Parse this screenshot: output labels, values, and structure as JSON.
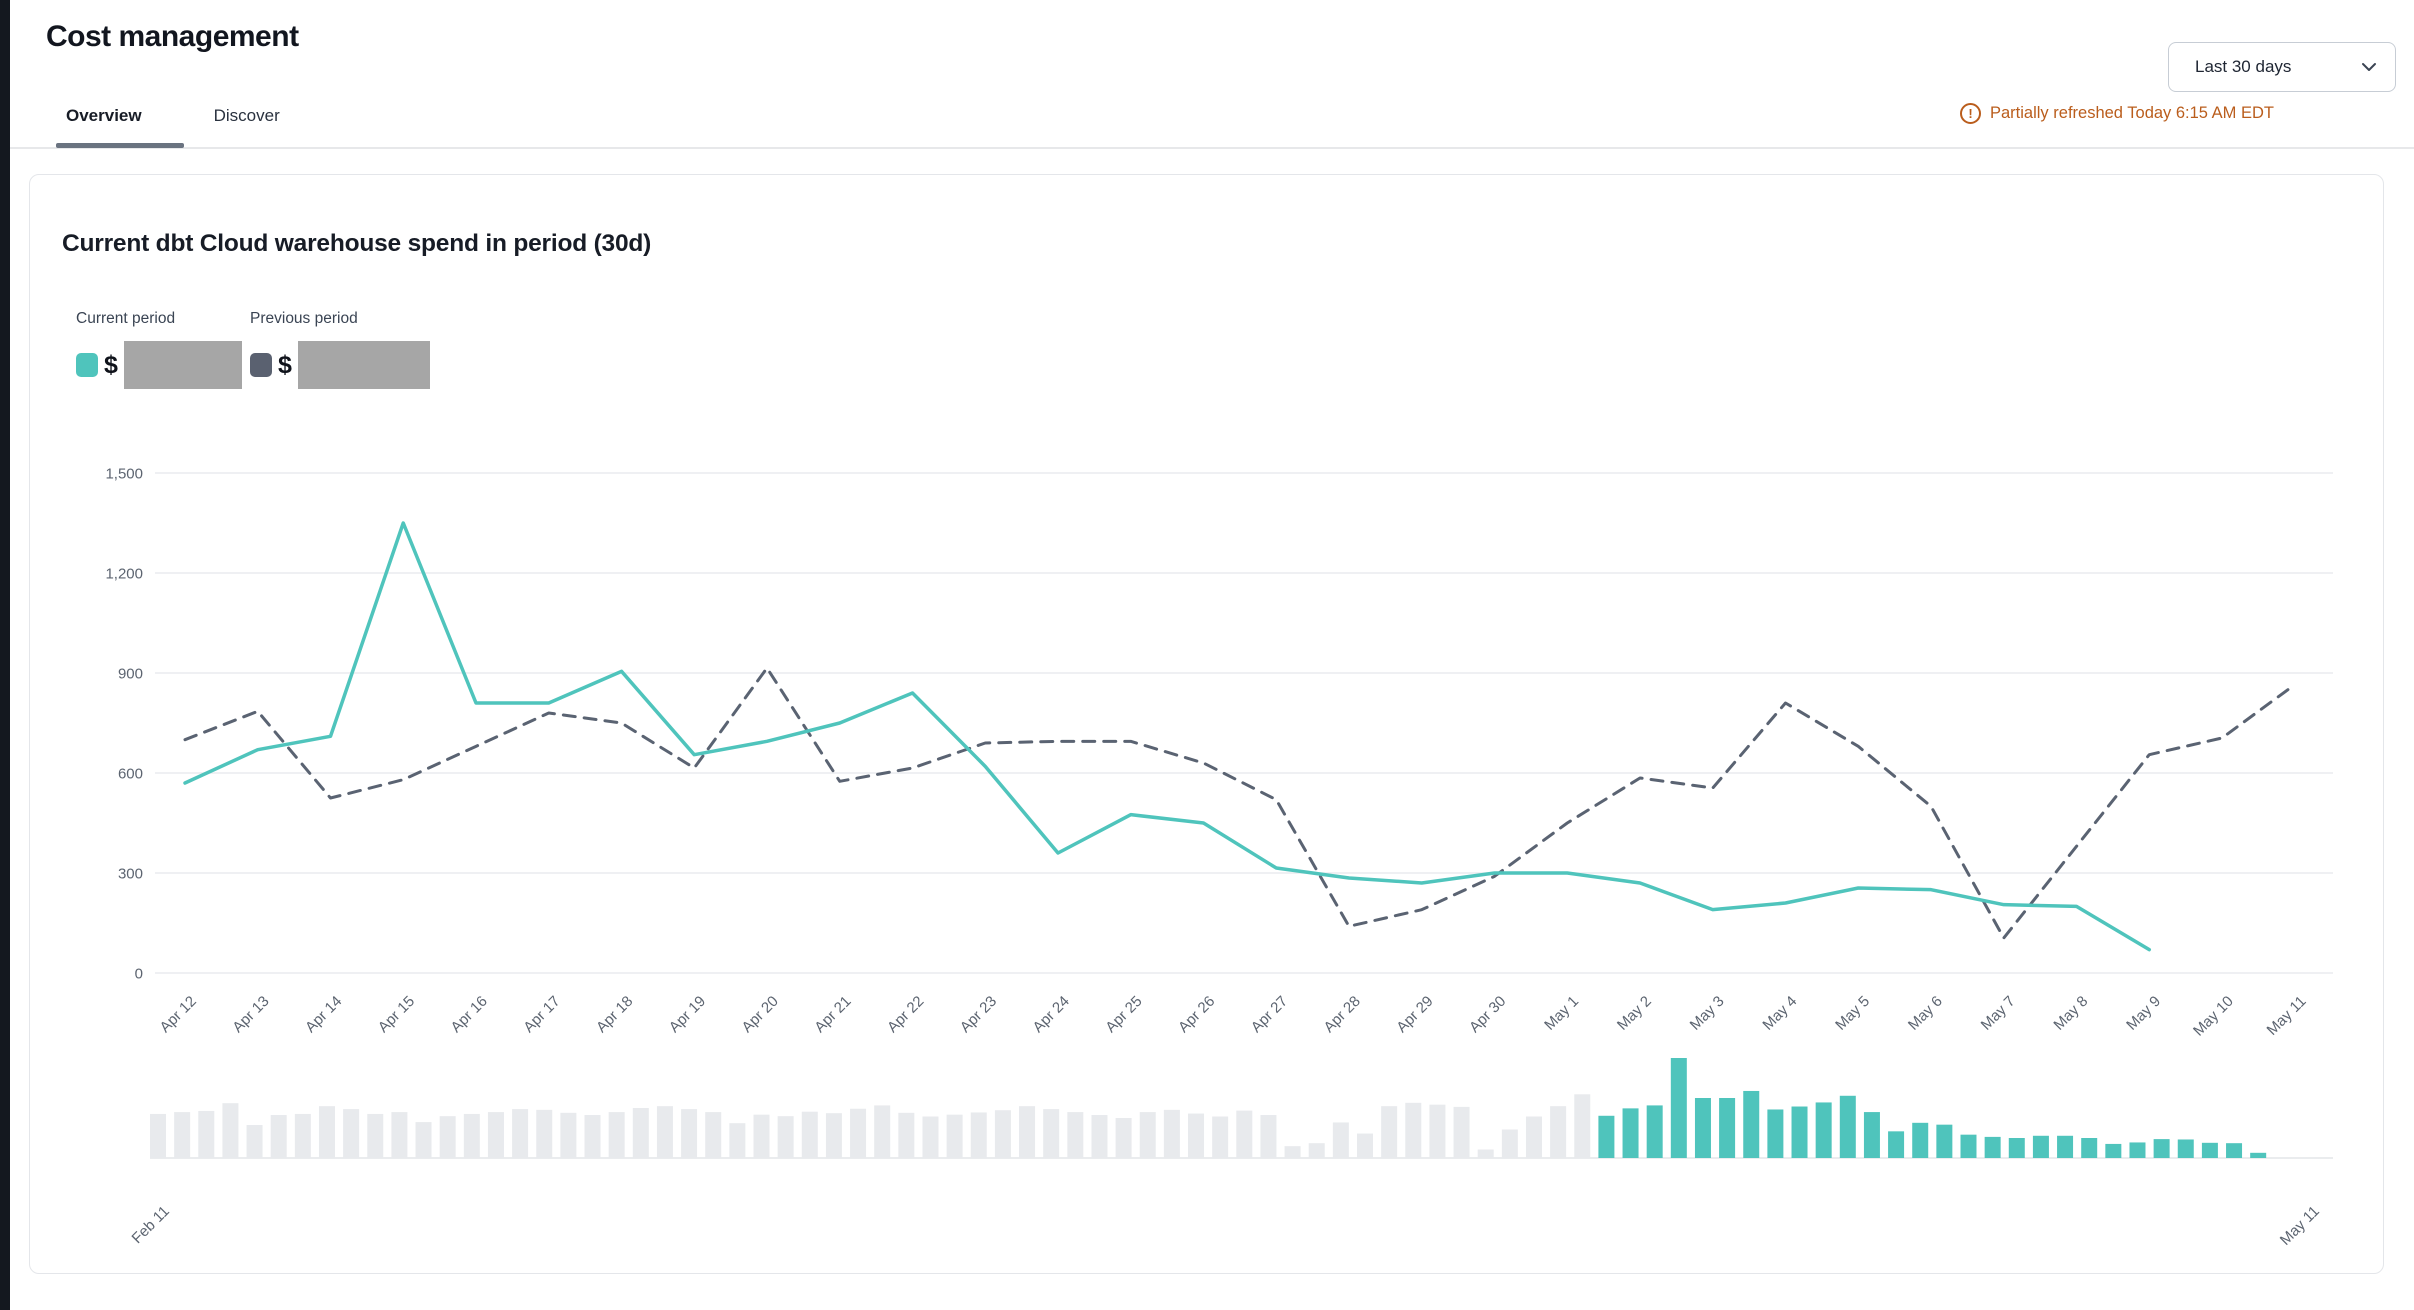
{
  "page": {
    "title": "Cost management"
  },
  "tabs": [
    {
      "label": "Overview",
      "active": true
    },
    {
      "label": "Discover",
      "active": false
    }
  ],
  "controls": {
    "date_range": "Last 30 days",
    "chevron": "chevron-down"
  },
  "status": {
    "text": "Partially refreshed Today 6:15 AM EDT",
    "icon": "alert-circle"
  },
  "card": {
    "title": "Current dbt Cloud warehouse spend in period (30d)",
    "legend": [
      {
        "label": "Current period",
        "currency": "$",
        "swatch_color": "#4FC4BC",
        "value_redacted": true
      },
      {
        "label": "Previous period",
        "currency": "$",
        "swatch_color": "#5A6170",
        "value_redacted": true
      }
    ]
  },
  "chart_data": {
    "type": "line",
    "title": "Current dbt Cloud warehouse spend in period (30d)",
    "grid": "horizontal",
    "ylim": [
      0,
      1500
    ],
    "yticks": [
      "0",
      "300",
      "600",
      "900",
      "1,200",
      "1,500"
    ],
    "x": [
      "Apr 12",
      "Apr 13",
      "Apr 14",
      "Apr 15",
      "Apr 16",
      "Apr 17",
      "Apr 18",
      "Apr 19",
      "Apr 20",
      "Apr 21",
      "Apr 22",
      "Apr 23",
      "Apr 24",
      "Apr 25",
      "Apr 26",
      "Apr 27",
      "Apr 28",
      "Apr 29",
      "Apr 30",
      "May 1",
      "May 2",
      "May 3",
      "May 4",
      "May 5",
      "May 6",
      "May 7",
      "May 8",
      "May 9",
      "May 10",
      "May 11"
    ],
    "series": [
      {
        "name": "Current period",
        "style": "solid",
        "color": "#4FC4BC",
        "values": [
          570,
          670,
          710,
          1350,
          810,
          810,
          905,
          655,
          695,
          750,
          840,
          620,
          360,
          475,
          450,
          315,
          285,
          270,
          300,
          300,
          270,
          190,
          210,
          255,
          250,
          205,
          200,
          70,
          null,
          null
        ]
      },
      {
        "name": "Previous period",
        "style": "dashed",
        "color": "#5A6372",
        "values": [
          700,
          785,
          525,
          580,
          680,
          780,
          750,
          615,
          915,
          575,
          615,
          690,
          695,
          695,
          630,
          520,
          140,
          190,
          290,
          450,
          585,
          555,
          810,
          680,
          500,
          105,
          380,
          655,
          705,
          865
        ]
      }
    ],
    "minimap": {
      "type": "bar",
      "range_labels": [
        "Feb 11",
        "May 11"
      ],
      "note": "90 daily bars Feb 11 - May 11; last 30 days (selected window Apr 12 - May 11) highlighted in teal; values estimated",
      "gray_values": [
        595,
        620,
        635,
        740,
        445,
        580,
        595,
        700,
        660,
        595,
        620,
        485,
        565,
        595,
        620,
        660,
        650,
        610,
        580,
        620,
        675,
        700,
        660,
        620,
        470,
        585,
        565,
        625,
        605,
        665,
        710,
        610,
        560,
        585,
        615,
        645,
        700,
        660,
        620,
        580,
        540,
        620,
        650,
        600,
        560,
        640,
        580,
        160,
        200,
        480,
        330,
        700,
        745,
        720,
        690,
        115,
        385,
        560,
        700,
        860
      ],
      "selected_values": [
        570,
        670,
        710,
        1350,
        810,
        810,
        905,
        655,
        695,
        750,
        840,
        620,
        360,
        475,
        450,
        315,
        285,
        270,
        300,
        300,
        270,
        190,
        210,
        255,
        250,
        205,
        200,
        70,
        0,
        0
      ]
    }
  },
  "colors": {
    "accent_teal": "#4FC4BC",
    "previous_slate": "#5A6372",
    "status_orange": "#BA5D1C",
    "redaction_gray": "#A6A6A6",
    "gridline": "#EAECEF",
    "axis_text": "#5C6470",
    "minimap_gray_bar": "#E8EAED"
  }
}
